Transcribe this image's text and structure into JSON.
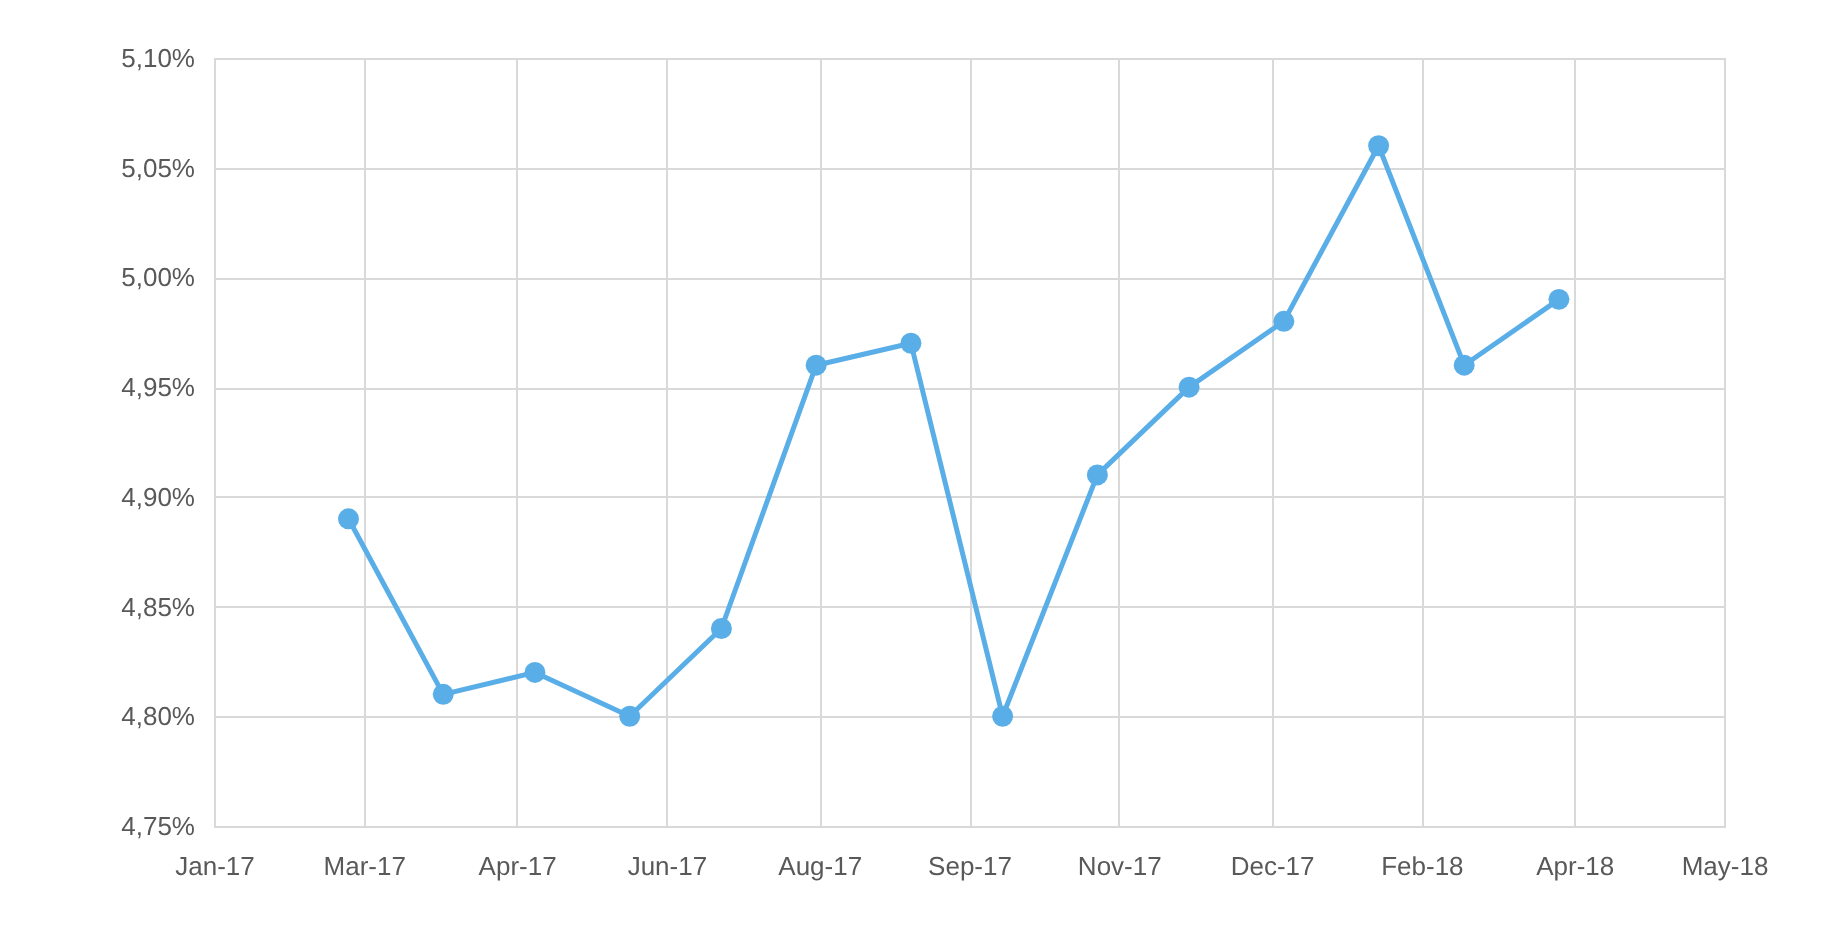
{
  "chart_data": {
    "type": "line",
    "x": [
      "2017-03",
      "2017-04",
      "2017-05",
      "2017-06",
      "2017-07",
      "2017-08",
      "2017-09",
      "2017-10",
      "2017-11",
      "2017-12",
      "2018-01",
      "2018-02",
      "2018-03",
      "2018-04"
    ],
    "series": [
      {
        "color": "#5aaee8",
        "values": [
          4.89,
          4.81,
          4.82,
          4.8,
          4.84,
          4.96,
          4.97,
          4.8,
          4.91,
          4.95,
          4.98,
          5.06,
          4.96,
          4.99
        ]
      }
    ],
    "xlim": [
      "2017-01-16",
      "2018-05-25"
    ],
    "xticks": [
      {
        "value": "2017-01-16",
        "label": "Jan-17"
      },
      {
        "value": "2017-03-06",
        "label": "Mar-17"
      },
      {
        "value": "2017-04-25",
        "label": "Apr-17"
      },
      {
        "value": "2017-06-13",
        "label": "Jun-17"
      },
      {
        "value": "2017-08-02",
        "label": "Aug-17"
      },
      {
        "value": "2017-09-20",
        "label": "Sep-17"
      },
      {
        "value": "2017-11-08",
        "label": "Nov-17"
      },
      {
        "value": "2017-12-28",
        "label": "Dec-17"
      },
      {
        "value": "2018-02-15",
        "label": "Feb-18"
      },
      {
        "value": "2018-04-06",
        "label": "Apr-18"
      },
      {
        "value": "2018-05-25",
        "label": "May-18"
      }
    ],
    "ylim": [
      4.75,
      5.1
    ],
    "yticks": [
      {
        "value": 4.75,
        "label": "4,75%"
      },
      {
        "value": 4.8,
        "label": "4,80%"
      },
      {
        "value": 4.85,
        "label": "4,85%"
      },
      {
        "value": 4.9,
        "label": "4,90%"
      },
      {
        "value": 4.95,
        "label": "4,95%"
      },
      {
        "value": 5.0,
        "label": "5,00%"
      },
      {
        "value": 5.05,
        "label": "5,05%"
      },
      {
        "value": 5.1,
        "label": "5,10%"
      }
    ],
    "grid": true,
    "marker": "circle",
    "line_style": "solid"
  }
}
